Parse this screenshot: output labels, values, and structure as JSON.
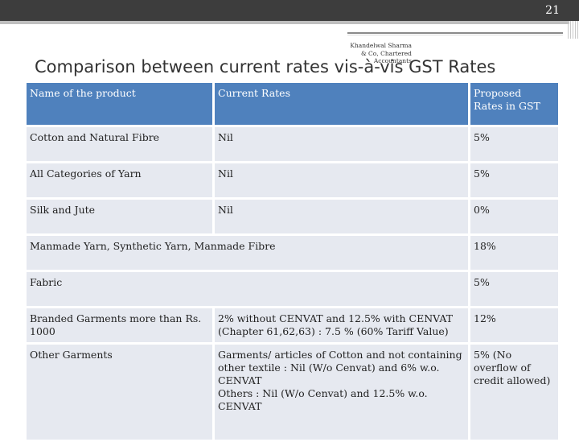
{
  "slide": {
    "page_number": "21",
    "firm": "Khandelwal Sharma & Co, Chartered Accountants",
    "title": "Comparison between current rates vis-à-vis GST Rates"
  },
  "table": {
    "headers": [
      "Name of the product",
      "Current Rates",
      "Proposed Rates in GST"
    ],
    "rows": [
      {
        "product": "Cotton and Natural Fibre",
        "current": "Nil",
        "proposed": "5%"
      },
      {
        "product": "All Categories of Yarn",
        "current": "Nil",
        "proposed": "5%"
      },
      {
        "product": "Silk and Jute",
        "current": "Nil",
        "proposed": "0%"
      },
      {
        "product": "Manmade Yarn, Synthetic Yarn, Manmade Fibre",
        "proposed": "18%"
      },
      {
        "product": "Fabric",
        "proposed": "5%"
      },
      {
        "product": "Branded Garments more than Rs. 1000",
        "current": "2% without CENVAT and 12.5% with CENVAT (Chapter 61,62,63) : 7.5 % (60% Tariff Value)",
        "proposed": "12%"
      },
      {
        "product": "Other Garments",
        "current_lines": [
          "Garments/ articles of Cotton and not containing other textile : Nil (W/o Cenvat) and 6% w.o. CENVAT",
          "Others : Nil (W/o Cenvat) and 12.5% w.o. CENVAT"
        ],
        "proposed": "5% (No overflow of credit allowed)"
      }
    ]
  }
}
